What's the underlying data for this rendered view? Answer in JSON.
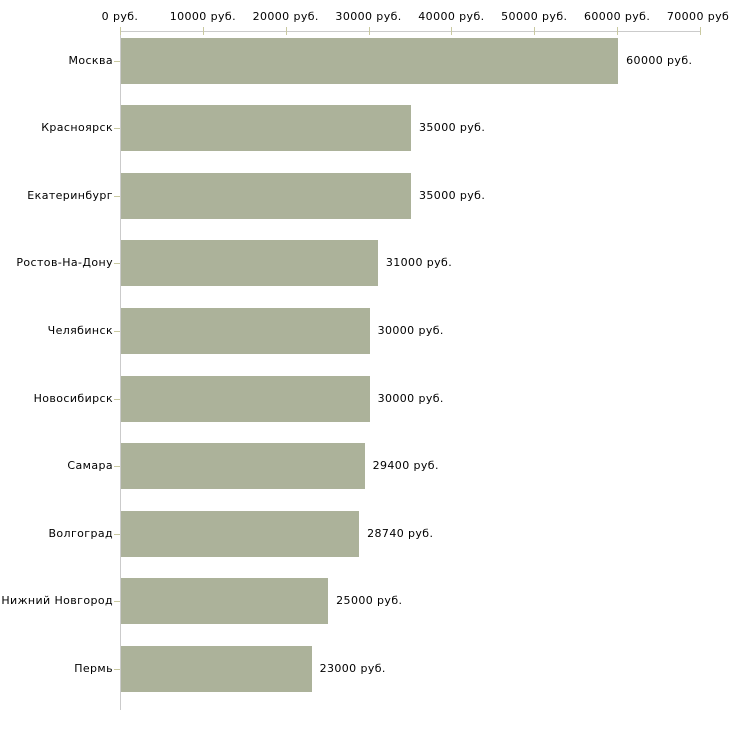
{
  "chart_data": {
    "type": "bar",
    "orientation": "horizontal",
    "title": "",
    "unit": "руб.",
    "categories": [
      "Москва",
      "Красноярск",
      "Екатеринбург",
      "Ростов-На-Дону",
      "Челябинск",
      "Новосибирск",
      "Самара",
      "Волгоград",
      "Нижний Новгород",
      "Пермь"
    ],
    "values": [
      60000,
      35000,
      35000,
      31000,
      30000,
      30000,
      29400,
      28740,
      25000,
      23000
    ],
    "value_labels": [
      "60000 руб.",
      "35000 руб.",
      "35000 руб.",
      "31000 руб.",
      "30000 руб.",
      "30000 руб.",
      "29400 руб.",
      "28740 руб.",
      "25000 руб.",
      "23000 руб."
    ],
    "x_axis": {
      "position": "top",
      "min": 0,
      "max": 70000,
      "ticks": [
        0,
        10000,
        20000,
        30000,
        40000,
        50000,
        60000,
        70000
      ],
      "tick_labels": [
        "0 руб.",
        "10000 руб.",
        "20000 руб.",
        "30000 руб.",
        "40000 руб.",
        "50000 руб.",
        "60000 руб.",
        "70000 руб."
      ]
    },
    "grid": false,
    "legend": false,
    "colors": {
      "bar": "#acb29a",
      "axis_line": "#cbcbcb",
      "tick_mark": "#c9c9a0",
      "text": "#000000",
      "background": "#ffffff"
    }
  }
}
